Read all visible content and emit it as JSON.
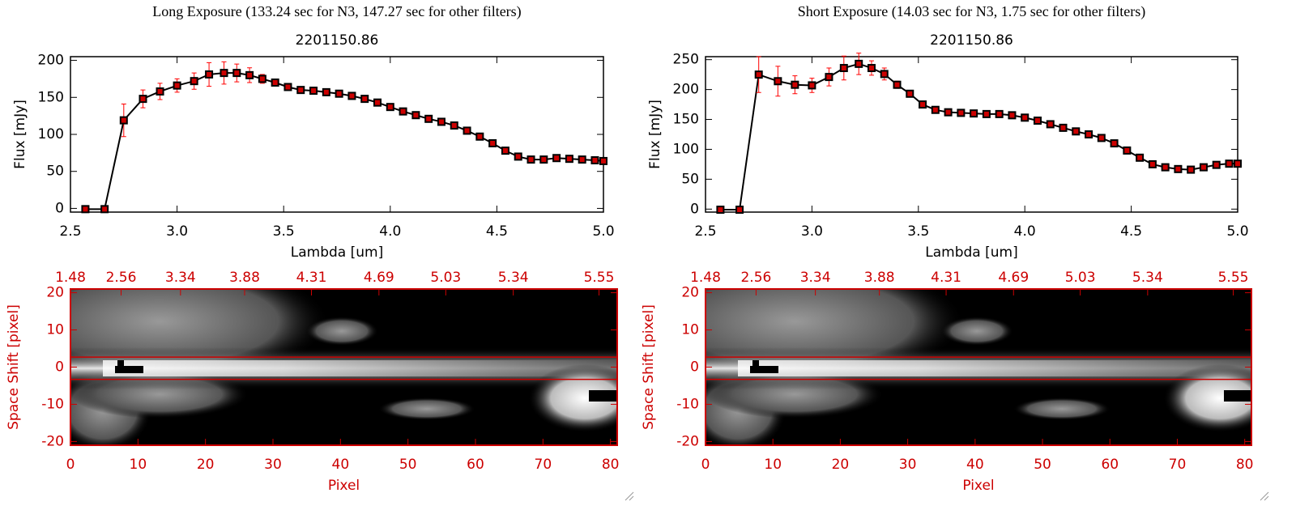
{
  "chart_data": [
    {
      "type": "line",
      "suptitle": "Long Exposure (133.24 sec for N3, 147.27 sec for other filters)",
      "title": "2201150.86",
      "xlabel": "Lambda [um]",
      "ylabel": "Flux [mJy]",
      "x": [
        2.57,
        2.66,
        2.75,
        2.84,
        2.92,
        3.0,
        3.08,
        3.15,
        3.22,
        3.28,
        3.34,
        3.4,
        3.46,
        3.52,
        3.58,
        3.64,
        3.7,
        3.76,
        3.82,
        3.88,
        3.94,
        4.0,
        4.06,
        4.12,
        4.18,
        4.24,
        4.3,
        4.36,
        4.42,
        4.48,
        4.54,
        4.6,
        4.66,
        4.72,
        4.78,
        4.84,
        4.9,
        4.96,
        5.0
      ],
      "series": [
        {
          "color": "#000000",
          "marker_color": "#cc0000",
          "error_color": "#ff0000",
          "values": [
            -1,
            -1,
            119,
            148,
            158,
            166,
            172,
            181,
            183,
            183,
            180,
            175,
            170,
            164,
            160,
            159,
            157,
            155,
            152,
            148,
            143,
            137,
            131,
            126,
            121,
            117,
            112,
            105,
            97,
            88,
            78,
            70,
            66,
            66,
            68,
            67,
            66,
            65,
            64
          ],
          "errors": [
            0,
            0,
            22,
            12,
            11,
            9,
            11,
            16,
            15,
            12,
            10,
            6,
            4,
            3,
            3,
            3,
            3,
            3,
            3,
            3,
            3,
            3,
            3,
            3,
            3,
            3,
            3,
            3,
            3,
            3,
            3,
            3,
            3,
            3,
            3,
            3,
            3,
            3,
            3
          ]
        }
      ],
      "xlim": [
        2.5,
        5.0
      ],
      "xticks": [
        2.5,
        {
          "value": 3,
          "label": "3.0"
        },
        3.5,
        {
          "value": 4,
          "label": "4.0"
        },
        4.5,
        {
          "value": 5,
          "label": "5.0"
        }
      ],
      "ylim": [
        -5,
        205
      ],
      "yticks": [
        0,
        50,
        100,
        150,
        200
      ]
    },
    {
      "type": "image",
      "xlabel": "Pixel",
      "ylabel": "Space Shift [pixel]",
      "axis_color": "#cc0000",
      "xlim": [
        0,
        81
      ],
      "xticks": [
        0,
        10,
        20,
        30,
        40,
        50,
        60,
        70,
        80
      ],
      "top_xticks": [
        {
          "value": 0,
          "label": "1.48"
        },
        {
          "value": 7.5,
          "label": "2.56"
        },
        {
          "value": 16.3,
          "label": "3.34"
        },
        {
          "value": 25.8,
          "label": "3.88"
        },
        {
          "value": 35.7,
          "label": "4.31"
        },
        {
          "value": 45.7,
          "label": "4.69"
        },
        {
          "value": 55.6,
          "label": "5.03"
        },
        {
          "value": 65.6,
          "label": "5.34"
        },
        {
          "value": 78.3,
          "label": "5.55"
        }
      ],
      "ylim": [
        -21,
        21
      ],
      "yticks": [
        -20,
        -10,
        0,
        10,
        20
      ],
      "aperture": [
        2.7,
        -3.3
      ]
    },
    {
      "type": "line",
      "suptitle": "Short Exposure (14.03 sec for N3, 1.75 sec for other filters)",
      "title": "2201150.86",
      "xlabel": "Lambda [um]",
      "ylabel": "Flux [mJy]",
      "x": [
        2.57,
        2.66,
        2.75,
        2.84,
        2.92,
        3.0,
        3.08,
        3.15,
        3.22,
        3.28,
        3.34,
        3.4,
        3.46,
        3.52,
        3.58,
        3.64,
        3.7,
        3.76,
        3.82,
        3.88,
        3.94,
        4.0,
        4.06,
        4.12,
        4.18,
        4.24,
        4.3,
        4.36,
        4.42,
        4.48,
        4.54,
        4.6,
        4.66,
        4.72,
        4.78,
        4.84,
        4.9,
        4.96,
        5.0
      ],
      "series": [
        {
          "color": "#000000",
          "marker_color": "#cc0000",
          "error_color": "#ff0000",
          "values": [
            -1,
            -1,
            225,
            214,
            208,
            207,
            221,
            236,
            243,
            236,
            226,
            208,
            193,
            175,
            166,
            162,
            161,
            160,
            159,
            159,
            157,
            153,
            148,
            142,
            136,
            130,
            125,
            119,
            110,
            98,
            86,
            75,
            70,
            67,
            66,
            70,
            74,
            76,
            76
          ],
          "errors": [
            0,
            0,
            30,
            25,
            15,
            12,
            15,
            20,
            18,
            12,
            10,
            6,
            4,
            3,
            3,
            3,
            3,
            3,
            3,
            3,
            3,
            3,
            3,
            3,
            3,
            3,
            3,
            3,
            3,
            3,
            3,
            3,
            3,
            3,
            3,
            3,
            3,
            3,
            3
          ]
        }
      ],
      "xlim": [
        2.5,
        5.0
      ],
      "xticks": [
        2.5,
        {
          "value": 3,
          "label": "3.0"
        },
        3.5,
        {
          "value": 4,
          "label": "4.0"
        },
        4.5,
        {
          "value": 5,
          "label": "5.0"
        }
      ],
      "ylim": [
        -5,
        255
      ],
      "yticks": [
        0,
        50,
        100,
        150,
        200,
        250
      ]
    },
    {
      "type": "image",
      "xlabel": "Pixel",
      "ylabel": "Space Shift [pixel]",
      "axis_color": "#cc0000",
      "xlim": [
        0,
        81
      ],
      "xticks": [
        0,
        10,
        20,
        30,
        40,
        50,
        60,
        70,
        80
      ],
      "top_xticks": [
        {
          "value": 0,
          "label": "1.48"
        },
        {
          "value": 7.5,
          "label": "2.56"
        },
        {
          "value": 16.3,
          "label": "3.34"
        },
        {
          "value": 25.8,
          "label": "3.88"
        },
        {
          "value": 35.7,
          "label": "4.31"
        },
        {
          "value": 45.7,
          "label": "4.69"
        },
        {
          "value": 55.6,
          "label": "5.03"
        },
        {
          "value": 65.6,
          "label": "5.34"
        },
        {
          "value": 78.3,
          "label": "5.55"
        }
      ],
      "ylim": [
        -21,
        21
      ],
      "yticks": [
        -20,
        -10,
        0,
        10,
        20
      ],
      "aperture": [
        2.7,
        -3.3
      ]
    }
  ]
}
